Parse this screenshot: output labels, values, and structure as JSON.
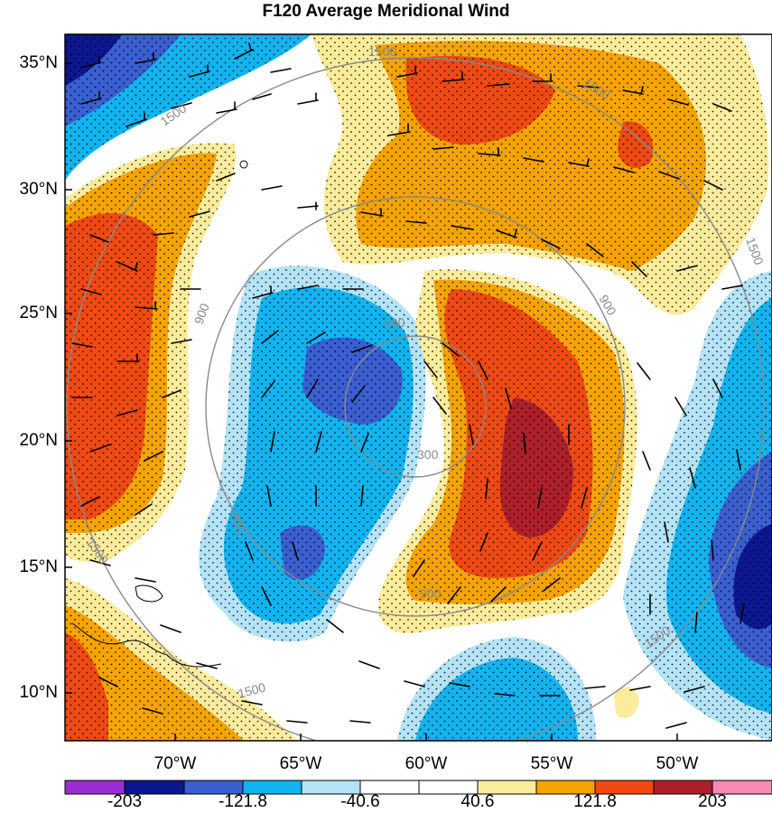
{
  "title": "F120 Average Meridional Wind",
  "lat_labels": [
    "35°N",
    "30°N",
    "25°N",
    "20°N",
    "15°N",
    "10°N"
  ],
  "lon_labels": [
    "70°W",
    "65°W",
    "60°W",
    "55°W",
    "50°W"
  ],
  "ring_labels": [
    "300",
    "300",
    "900",
    "900",
    "900",
    "900",
    "1500",
    "1500",
    "1500",
    "1500",
    "1500",
    "1500",
    "1500"
  ],
  "colorbar": {
    "labels": [
      "-203",
      "-121.8",
      "-40.6",
      "40.6",
      "121.8",
      "203"
    ],
    "colors": [
      "#9a2fd1",
      "#0c178f",
      "#3a5fcf",
      "#12b3ef",
      "#b4e3f7",
      "#ffffff",
      "#ffffff",
      "#fbec9c",
      "#f5a300",
      "#ef4a14",
      "#ad1f2a",
      "#f58ab4"
    ]
  },
  "palette": {
    "strong_neg": "#0c178f",
    "mid_neg": "#3a5fcf",
    "neg": "#12b3ef",
    "weak_neg": "#b4e3f7",
    "weak_pos": "#fbec9c",
    "pos": "#f5a300",
    "mid_pos": "#ef4a14",
    "strong_pos": "#ad1f2a"
  }
}
